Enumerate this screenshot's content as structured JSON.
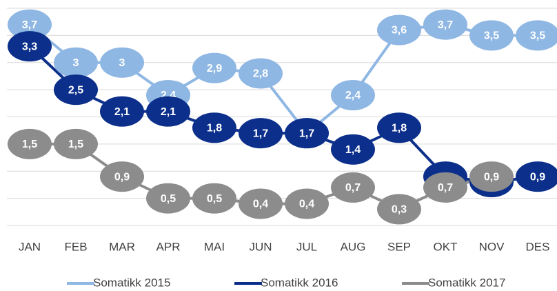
{
  "chart_data": {
    "type": "line",
    "categories": [
      "JAN",
      "FEB",
      "MAR",
      "APR",
      "MAI",
      "JUN",
      "JUL",
      "AUG",
      "SEP",
      "OKT",
      "NOV",
      "DES"
    ],
    "series": [
      {
        "name": "Somatikk 2015",
        "color": "#8fb7e3",
        "values": [
          3.7,
          3,
          3,
          2.4,
          2.9,
          2.8,
          1.7,
          2.4,
          3.6,
          3.7,
          3.5,
          3.5
        ],
        "value_labels": [
          "3,7",
          "3",
          "3",
          "2,4",
          "2,9",
          "2,8",
          "1,7",
          "2,4",
          "3,6",
          "3,7",
          "3,5",
          "3,5"
        ]
      },
      {
        "name": "Somatikk 2016",
        "color": "#0b2f8a",
        "values": [
          3.3,
          2.5,
          2.1,
          2.1,
          1.8,
          1.7,
          1.7,
          1.4,
          1.8,
          0.9,
          0.8,
          0.9
        ],
        "value_labels": [
          "3,3",
          "2,5",
          "2,1",
          "2,1",
          "1,8",
          "1,7",
          "1,7",
          "1,4",
          "1,8",
          "0,9",
          "0,8",
          "0,9"
        ]
      },
      {
        "name": "Somatikk 2017",
        "color": "#8c8c8c",
        "values": [
          1.5,
          1.5,
          0.9,
          0.5,
          0.5,
          0.4,
          0.4,
          0.7,
          0.3,
          0.7,
          0.9,
          null
        ],
        "value_labels": [
          "1,5",
          "1,5",
          "0,9",
          "0,5",
          "0,5",
          "0,4",
          "0,4",
          "0,7",
          "0,3",
          "0,7",
          "0,9",
          null
        ]
      }
    ],
    "ylim": [
      0,
      4
    ],
    "yticks": [
      0,
      0.5,
      1,
      1.5,
      2,
      2.5,
      3,
      3.5,
      4
    ],
    "grid": true,
    "legend": "bottom"
  }
}
